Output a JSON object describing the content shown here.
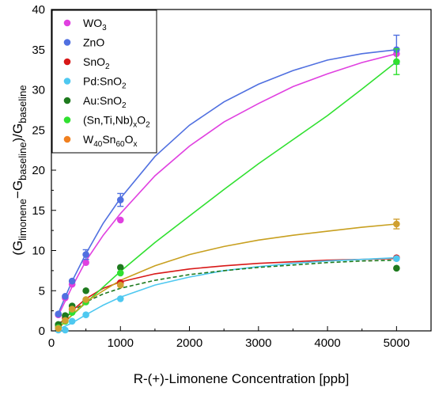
{
  "chart_data": {
    "type": "scatter",
    "xlabel": "R-(+)-Limonene Concentration [ppb]",
    "ylabel_parts": {
      "open": "(G",
      "sub1": "limonene",
      "mid": "−G",
      "sub2": "baseline",
      "close": ")/G",
      "sub3": "baseline"
    },
    "xlim": [
      0,
      5500
    ],
    "ylim": [
      0,
      40
    ],
    "x_ticks": [
      0,
      1000,
      2000,
      3000,
      4000,
      5000
    ],
    "y_ticks": [
      0,
      5,
      10,
      15,
      20,
      25,
      30,
      35,
      40
    ],
    "grid": false,
    "legend_position": "top-left",
    "series": [
      {
        "name": "WO3",
        "label_parts": [
          [
            "WO",
            ""
          ],
          [
            "3",
            "sub"
          ]
        ],
        "color": "#e040e0",
        "points": [
          [
            100,
            2.0
          ],
          [
            200,
            4.1
          ],
          [
            300,
            5.8
          ],
          [
            500,
            8.5
          ],
          [
            1000,
            13.8
          ],
          [
            5000,
            34.5
          ]
        ],
        "fit": [
          [
            100,
            1.9
          ],
          [
            300,
            5.5
          ],
          [
            500,
            8.7
          ],
          [
            750,
            11.9
          ],
          [
            1000,
            14.6
          ],
          [
            1500,
            19.3
          ],
          [
            2000,
            23.0
          ],
          [
            2500,
            26.0
          ],
          [
            3000,
            28.3
          ],
          [
            3500,
            30.4
          ],
          [
            4000,
            32.0
          ],
          [
            4500,
            33.4
          ],
          [
            5000,
            34.5
          ]
        ],
        "fit_dashed": false
      },
      {
        "name": "ZnO",
        "label_parts": [
          [
            "ZnO",
            ""
          ]
        ],
        "color": "#5070e0",
        "points": [
          [
            100,
            2.1
          ],
          [
            200,
            4.3
          ],
          [
            300,
            6.2
          ],
          [
            500,
            9.5
          ],
          [
            1000,
            16.3
          ],
          [
            5000,
            35.0
          ]
        ],
        "error": [
          0,
          0,
          0,
          0.6,
          0.8,
          1.8
        ],
        "fit": [
          [
            100,
            2.2
          ],
          [
            300,
            6.2
          ],
          [
            500,
            9.6
          ],
          [
            750,
            13.4
          ],
          [
            1000,
            16.5
          ],
          [
            1500,
            21.7
          ],
          [
            2000,
            25.6
          ],
          [
            2500,
            28.5
          ],
          [
            3000,
            30.7
          ],
          [
            3500,
            32.4
          ],
          [
            4000,
            33.7
          ],
          [
            4500,
            34.5
          ],
          [
            5000,
            35.0
          ]
        ],
        "fit_dashed": false
      },
      {
        "name": "SnO2",
        "label_parts": [
          [
            "SnO",
            ""
          ],
          [
            "2",
            "sub"
          ]
        ],
        "color": "#d81818",
        "points": [
          [
            100,
            0.7
          ],
          [
            200,
            1.6
          ],
          [
            300,
            2.7
          ],
          [
            500,
            3.8
          ],
          [
            1000,
            6.0
          ],
          [
            5000,
            9.1
          ]
        ],
        "fit": [
          [
            100,
            0.7
          ],
          [
            300,
            2.5
          ],
          [
            500,
            4.0
          ],
          [
            750,
            5.3
          ],
          [
            1000,
            6.1
          ],
          [
            1500,
            7.1
          ],
          [
            2000,
            7.7
          ],
          [
            2500,
            8.1
          ],
          [
            3000,
            8.4
          ],
          [
            3500,
            8.6
          ],
          [
            4000,
            8.8
          ],
          [
            4500,
            8.9
          ],
          [
            5000,
            9.0
          ]
        ],
        "fit_dashed": false
      },
      {
        "name": "Pd:SnO2",
        "label_parts": [
          [
            "Pd:SnO",
            ""
          ],
          [
            "2",
            "sub"
          ]
        ],
        "color": "#4ec8f0",
        "points": [
          [
            100,
            0.1
          ],
          [
            200,
            0.1
          ],
          [
            300,
            1.2
          ],
          [
            500,
            2.0
          ],
          [
            1000,
            4.0
          ],
          [
            5000,
            9.0
          ]
        ],
        "fit": [
          [
            100,
            0.2
          ],
          [
            300,
            1.0
          ],
          [
            500,
            2.0
          ],
          [
            750,
            3.2
          ],
          [
            1000,
            4.2
          ],
          [
            1500,
            5.7
          ],
          [
            2000,
            6.7
          ],
          [
            2500,
            7.5
          ],
          [
            3000,
            8.0
          ],
          [
            3500,
            8.4
          ],
          [
            4000,
            8.7
          ],
          [
            4500,
            8.9
          ],
          [
            5000,
            9.1
          ]
        ],
        "fit_dashed": false
      },
      {
        "name": "Au:SnO2",
        "label_parts": [
          [
            "Au:SnO",
            ""
          ],
          [
            "2",
            "sub"
          ]
        ],
        "color": "#1e7a1e",
        "points": [
          [
            100,
            0.8
          ],
          [
            200,
            1.9
          ],
          [
            300,
            3.1
          ],
          [
            500,
            5.0
          ],
          [
            1000,
            7.9
          ],
          [
            5000,
            7.8
          ]
        ],
        "fit": [
          [
            100,
            0.8
          ],
          [
            300,
            2.4
          ],
          [
            500,
            3.6
          ],
          [
            750,
            4.6
          ],
          [
            1000,
            5.3
          ],
          [
            1500,
            6.3
          ],
          [
            2000,
            7.0
          ],
          [
            2500,
            7.5
          ],
          [
            3000,
            7.9
          ],
          [
            3500,
            8.2
          ],
          [
            4000,
            8.5
          ],
          [
            4500,
            8.7
          ],
          [
            5000,
            8.8
          ]
        ],
        "fit_dashed": true
      },
      {
        "name": "(Sn,Ti,Nb)xO2",
        "label_parts": [
          [
            "(Sn,Ti,Nb)",
            ""
          ],
          [
            "x",
            "sub"
          ],
          [
            "O",
            ""
          ],
          [
            "2",
            "sub"
          ]
        ],
        "color": "#30e030",
        "points": [
          [
            100,
            0.4
          ],
          [
            200,
            1.2
          ],
          [
            300,
            2.3
          ],
          [
            500,
            3.6
          ],
          [
            1000,
            7.2
          ],
          [
            5000,
            33.5
          ]
        ],
        "error": [
          0,
          0,
          0,
          0,
          0,
          1.6
        ],
        "fit": [
          [
            100,
            0.4
          ],
          [
            500,
            3.5
          ],
          [
            1000,
            7.4
          ],
          [
            1500,
            11.0
          ],
          [
            2000,
            14.3
          ],
          [
            2500,
            17.6
          ],
          [
            3000,
            20.8
          ],
          [
            3500,
            23.8
          ],
          [
            4000,
            26.8
          ],
          [
            4500,
            30.1
          ],
          [
            5000,
            33.5
          ]
        ],
        "fit_dashed": false
      },
      {
        "name": "W40Sn60Ox",
        "label_parts": [
          [
            "W",
            ""
          ],
          [
            "40",
            "sub"
          ],
          [
            "Sn",
            ""
          ],
          [
            "60",
            "sub"
          ],
          [
            "O",
            ""
          ],
          [
            "x",
            "sub"
          ]
        ],
        "color": "#f08020",
        "points": [
          [
            100,
            0.3
          ],
          [
            200,
            1.3
          ],
          [
            300,
            2.7
          ],
          [
            500,
            3.9
          ],
          [
            1000,
            5.7
          ],
          [
            5000,
            13.3
          ]
        ],
        "error": [
          0,
          0,
          0,
          0,
          0,
          0.6
        ],
        "fit_color": "#c8a020",
        "point_color": "#d0a030",
        "fit": [
          [
            100,
            0.3
          ],
          [
            300,
            2.0
          ],
          [
            500,
            3.6
          ],
          [
            750,
            5.0
          ],
          [
            1000,
            6.3
          ],
          [
            1500,
            8.1
          ],
          [
            2000,
            9.5
          ],
          [
            2500,
            10.5
          ],
          [
            3000,
            11.3
          ],
          [
            3500,
            11.9
          ],
          [
            4000,
            12.4
          ],
          [
            4500,
            12.9
          ],
          [
            5000,
            13.3
          ]
        ],
        "fit_dashed": false
      }
    ]
  }
}
